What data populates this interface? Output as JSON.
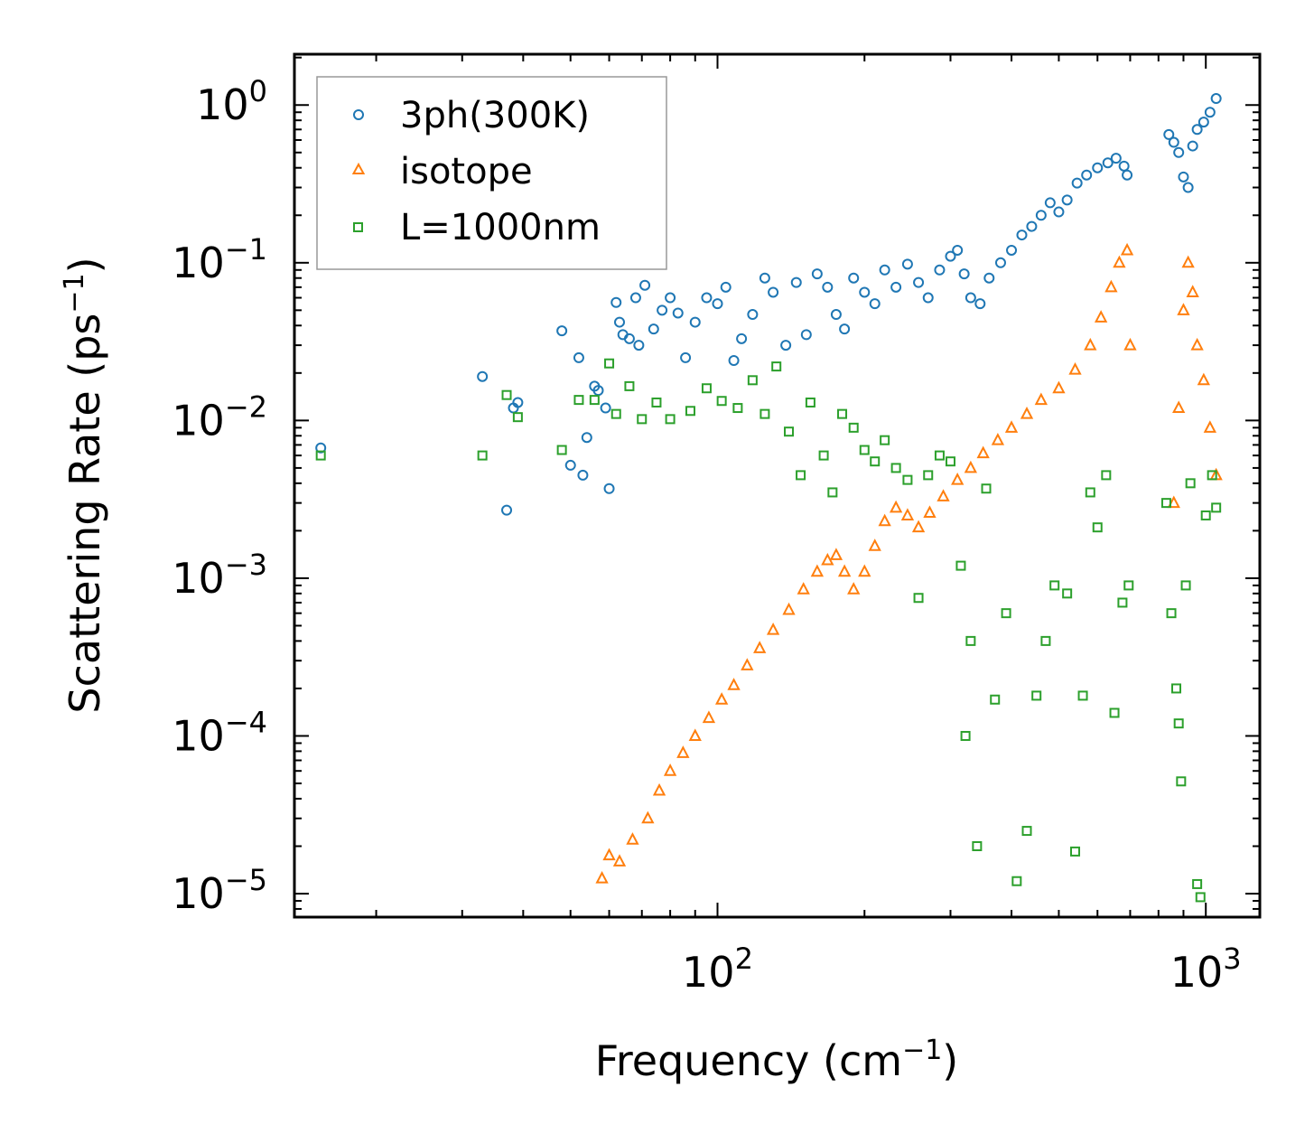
{
  "chart_data": {
    "type": "scatter",
    "xscale": "log",
    "yscale": "log",
    "xlim": [
      13.6,
      1290
    ],
    "ylim": [
      7.1e-06,
      2.1
    ],
    "xlabel": {
      "text": "Frequency (cm",
      "sup": "−1",
      "close": ")"
    },
    "ylabel": {
      "text": "Scattering Rate (ps",
      "sup": "−1",
      "close": ")"
    },
    "x_major_ticks": [
      {
        "value": 100,
        "base": "10",
        "exp": "2"
      },
      {
        "value": 1000,
        "base": "10",
        "exp": "3"
      }
    ],
    "y_major_ticks": [
      {
        "value": 1,
        "base": "10",
        "exp": "0"
      },
      {
        "value": 0.1,
        "base": "10",
        "exp": "−1"
      },
      {
        "value": 0.01,
        "base": "10",
        "exp": "−2"
      },
      {
        "value": 0.001,
        "base": "10",
        "exp": "−3"
      },
      {
        "value": 0.0001,
        "base": "10",
        "exp": "−4"
      },
      {
        "value": 1e-05,
        "base": "10",
        "exp": "−5"
      }
    ],
    "legend_position": "top-left",
    "series": [
      {
        "name": "3ph(300K)",
        "marker": "circle",
        "color": "#1f77b4",
        "points": [
          [
            15.4,
            0.0067
          ],
          [
            33,
            0.019
          ],
          [
            37,
            0.0027
          ],
          [
            38.2,
            0.012
          ],
          [
            39,
            0.013
          ],
          [
            48,
            0.037
          ],
          [
            50,
            0.0052
          ],
          [
            52,
            0.025
          ],
          [
            53,
            0.0045
          ],
          [
            54,
            0.0078
          ],
          [
            56,
            0.0165
          ],
          [
            57,
            0.0155
          ],
          [
            59,
            0.012
          ],
          [
            60,
            0.0037
          ],
          [
            62,
            0.056
          ],
          [
            63,
            0.042
          ],
          [
            64,
            0.035
          ],
          [
            66,
            0.033
          ],
          [
            68,
            0.06
          ],
          [
            69,
            0.03
          ],
          [
            71,
            0.072
          ],
          [
            74,
            0.038
          ],
          [
            77,
            0.05
          ],
          [
            80,
            0.06
          ],
          [
            83,
            0.048
          ],
          [
            86,
            0.025
          ],
          [
            90,
            0.042
          ],
          [
            95,
            0.06
          ],
          [
            100,
            0.055
          ],
          [
            104,
            0.07
          ],
          [
            108,
            0.024
          ],
          [
            112,
            0.033
          ],
          [
            118,
            0.047
          ],
          [
            125,
            0.08
          ],
          [
            130,
            0.065
          ],
          [
            138,
            0.03
          ],
          [
            145,
            0.075
          ],
          [
            152,
            0.035
          ],
          [
            160,
            0.085
          ],
          [
            168,
            0.07
          ],
          [
            175,
            0.047
          ],
          [
            182,
            0.038
          ],
          [
            190,
            0.08
          ],
          [
            200,
            0.065
          ],
          [
            210,
            0.055
          ],
          [
            220,
            0.09
          ],
          [
            232,
            0.07
          ],
          [
            245,
            0.098
          ],
          [
            258,
            0.075
          ],
          [
            270,
            0.06
          ],
          [
            285,
            0.09
          ],
          [
            300,
            0.11
          ],
          [
            310,
            0.12
          ],
          [
            320,
            0.085
          ],
          [
            330,
            0.06
          ],
          [
            345,
            0.055
          ],
          [
            360,
            0.08
          ],
          [
            380,
            0.1
          ],
          [
            400,
            0.12
          ],
          [
            420,
            0.15
          ],
          [
            440,
            0.17
          ],
          [
            460,
            0.2
          ],
          [
            480,
            0.24
          ],
          [
            500,
            0.21
          ],
          [
            520,
            0.25
          ],
          [
            545,
            0.32
          ],
          [
            570,
            0.36
          ],
          [
            600,
            0.4
          ],
          [
            630,
            0.43
          ],
          [
            655,
            0.46
          ],
          [
            680,
            0.41
          ],
          [
            690,
            0.36
          ],
          [
            840,
            0.65
          ],
          [
            860,
            0.58
          ],
          [
            880,
            0.5
          ],
          [
            900,
            0.35
          ],
          [
            920,
            0.3
          ],
          [
            940,
            0.55
          ],
          [
            960,
            0.7
          ],
          [
            990,
            0.78
          ],
          [
            1020,
            0.9
          ],
          [
            1050,
            1.1
          ]
        ]
      },
      {
        "name": "isotope",
        "marker": "triangle",
        "color": "#ff7f0e",
        "points": [
          [
            58,
            1.25e-05
          ],
          [
            60,
            1.75e-05
          ],
          [
            63,
            1.6e-05
          ],
          [
            67,
            2.2e-05
          ],
          [
            72,
            3e-05
          ],
          [
            76,
            4.5e-05
          ],
          [
            80,
            6e-05
          ],
          [
            85,
            7.8e-05
          ],
          [
            90,
            0.0001
          ],
          [
            96,
            0.00013
          ],
          [
            102,
            0.00017
          ],
          [
            108,
            0.00021
          ],
          [
            115,
            0.00028
          ],
          [
            122,
            0.00036
          ],
          [
            130,
            0.00047
          ],
          [
            140,
            0.00063
          ],
          [
            150,
            0.00085
          ],
          [
            160,
            0.0011
          ],
          [
            168,
            0.0013
          ],
          [
            175,
            0.0014
          ],
          [
            182,
            0.0011
          ],
          [
            190,
            0.00085
          ],
          [
            200,
            0.0011
          ],
          [
            210,
            0.0016
          ],
          [
            220,
            0.0023
          ],
          [
            232,
            0.0028
          ],
          [
            245,
            0.0025
          ],
          [
            258,
            0.0021
          ],
          [
            272,
            0.0026
          ],
          [
            290,
            0.0033
          ],
          [
            310,
            0.0042
          ],
          [
            330,
            0.005
          ],
          [
            350,
            0.0062
          ],
          [
            375,
            0.0075
          ],
          [
            400,
            0.009
          ],
          [
            430,
            0.011
          ],
          [
            460,
            0.0135
          ],
          [
            500,
            0.016
          ],
          [
            540,
            0.021
          ],
          [
            580,
            0.03
          ],
          [
            610,
            0.045
          ],
          [
            640,
            0.07
          ],
          [
            665,
            0.1
          ],
          [
            690,
            0.12
          ],
          [
            700,
            0.03
          ],
          [
            860,
            0.003
          ],
          [
            880,
            0.012
          ],
          [
            900,
            0.05
          ],
          [
            920,
            0.1
          ],
          [
            940,
            0.065
          ],
          [
            960,
            0.03
          ],
          [
            990,
            0.018
          ],
          [
            1020,
            0.009
          ],
          [
            1050,
            0.0045
          ]
        ]
      },
      {
        "name": "L=1000nm",
        "marker": "square",
        "color": "#2ca02c",
        "points": [
          [
            15.4,
            0.006
          ],
          [
            33,
            0.006
          ],
          [
            37,
            0.0145
          ],
          [
            39,
            0.0105
          ],
          [
            48,
            0.0065
          ],
          [
            52,
            0.0135
          ],
          [
            56,
            0.0135
          ],
          [
            60,
            0.023
          ],
          [
            62,
            0.011
          ],
          [
            66,
            0.0165
          ],
          [
            70,
            0.0102
          ],
          [
            75,
            0.013
          ],
          [
            80,
            0.0102
          ],
          [
            88,
            0.0115
          ],
          [
            95,
            0.016
          ],
          [
            102,
            0.0133
          ],
          [
            110,
            0.012
          ],
          [
            118,
            0.018
          ],
          [
            125,
            0.011
          ],
          [
            132,
            0.022
          ],
          [
            140,
            0.0085
          ],
          [
            148,
            0.0045
          ],
          [
            155,
            0.013
          ],
          [
            165,
            0.006
          ],
          [
            172,
            0.0035
          ],
          [
            180,
            0.011
          ],
          [
            190,
            0.009
          ],
          [
            200,
            0.0065
          ],
          [
            210,
            0.0055
          ],
          [
            220,
            0.0075
          ],
          [
            232,
            0.005
          ],
          [
            245,
            0.0042
          ],
          [
            258,
            0.00075
          ],
          [
            270,
            0.0045
          ],
          [
            285,
            0.006
          ],
          [
            300,
            0.0055
          ],
          [
            315,
            0.0012
          ],
          [
            322,
            0.0001
          ],
          [
            330,
            0.0004
          ],
          [
            340,
            2e-05
          ],
          [
            355,
            0.0037
          ],
          [
            370,
            0.00017
          ],
          [
            390,
            0.0006
          ],
          [
            410,
            1.2e-05
          ],
          [
            430,
            2.5e-05
          ],
          [
            450,
            0.00018
          ],
          [
            470,
            0.0004
          ],
          [
            490,
            0.0009
          ],
          [
            520,
            0.0008
          ],
          [
            540,
            1.85e-05
          ],
          [
            560,
            0.00018
          ],
          [
            580,
            0.0035
          ],
          [
            600,
            0.0021
          ],
          [
            625,
            0.0045
          ],
          [
            650,
            0.00014
          ],
          [
            675,
            0.0007
          ],
          [
            695,
            0.0009
          ],
          [
            830,
            0.003
          ],
          [
            850,
            0.0006
          ],
          [
            870,
            0.0002
          ],
          [
            880,
            0.00012
          ],
          [
            890,
            5.15e-05
          ],
          [
            910,
            0.0009
          ],
          [
            930,
            0.004
          ],
          [
            960,
            1.15e-05
          ],
          [
            975,
            9.5e-06
          ],
          [
            1000,
            0.0025
          ],
          [
            1030,
            0.0045
          ],
          [
            1050,
            0.0028
          ]
        ]
      }
    ]
  }
}
